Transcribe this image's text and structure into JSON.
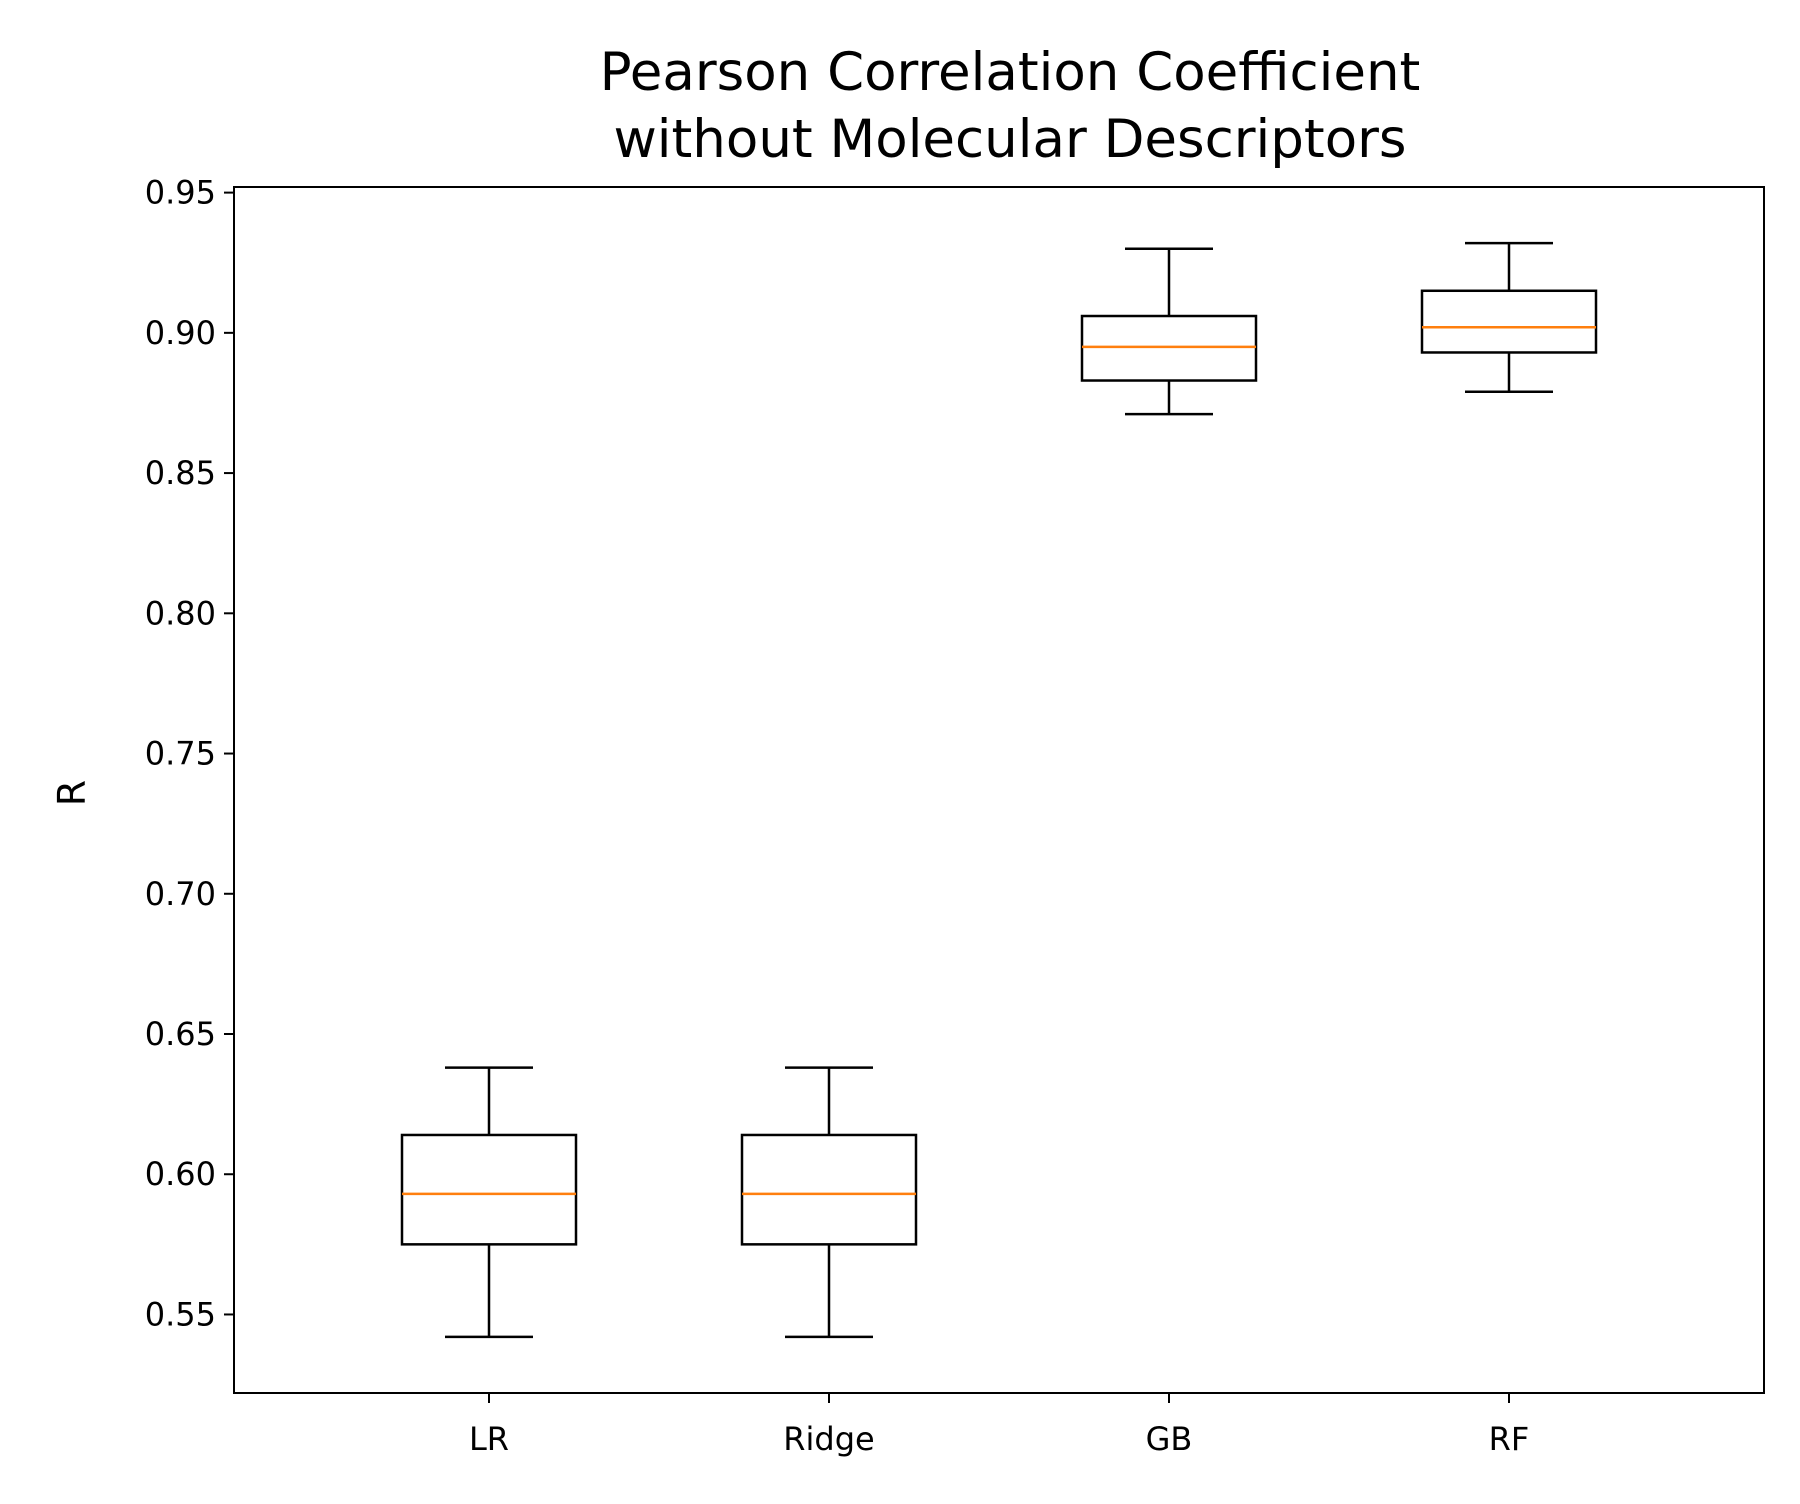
{
  "chart_data": {
    "type": "boxplot",
    "title": "Pearson Correlation Coefficient\nwithout Molecular Descriptors",
    "title_lines": [
      "Pearson Correlation Coefficient",
      "without Molecular Descriptors"
    ],
    "xlabel": "",
    "ylabel": "R",
    "ylim": [
      0.522,
      0.952
    ],
    "yticks": [
      0.55,
      0.6,
      0.65,
      0.7,
      0.75,
      0.8,
      0.85,
      0.9,
      0.95
    ],
    "ytick_labels": [
      "0.55",
      "0.60",
      "0.65",
      "0.70",
      "0.75",
      "0.80",
      "0.85",
      "0.90",
      "0.95"
    ],
    "categories": [
      "LR",
      "Ridge",
      "GB",
      "RF"
    ],
    "boxes": [
      {
        "category": "LR",
        "whisker_low": 0.542,
        "q1": 0.575,
        "median": 0.593,
        "q3": 0.614,
        "whisker_high": 0.638
      },
      {
        "category": "Ridge",
        "whisker_low": 0.542,
        "q1": 0.575,
        "median": 0.593,
        "q3": 0.614,
        "whisker_high": 0.638
      },
      {
        "category": "GB",
        "whisker_low": 0.871,
        "q1": 0.883,
        "median": 0.895,
        "q3": 0.906,
        "whisker_high": 0.93
      },
      {
        "category": "RF",
        "whisker_low": 0.879,
        "q1": 0.893,
        "median": 0.902,
        "q3": 0.915,
        "whisker_high": 0.932
      }
    ],
    "grid": false,
    "colors": {
      "box": "#000000",
      "median": "#ff7f0e",
      "axes": "#000000"
    }
  }
}
